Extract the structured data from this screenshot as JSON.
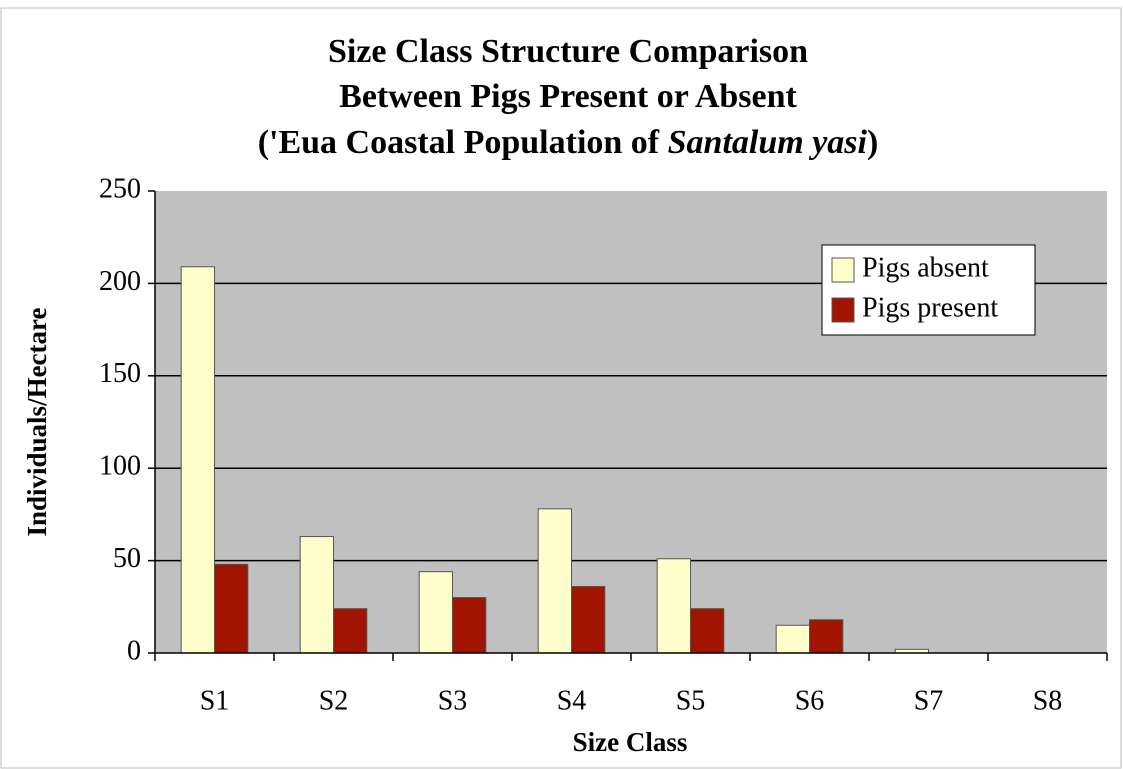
{
  "chart_data": {
    "type": "bar",
    "title": [
      "Size Class Structure Comparison",
      "Between Pigs Present or Absent",
      "('Eua Coastal Population of ",
      "Santalum yasi",
      ")"
    ],
    "x_label": "Size Class",
    "y_label": "Individuals/Hectare",
    "categories": [
      "S1",
      "S2",
      "S3",
      "S4",
      "S5",
      "S6",
      "S7",
      "S8"
    ],
    "series": [
      {
        "name": "Pigs absent",
        "color": "#ffffcc",
        "values": [
          209,
          63,
          44,
          78,
          51,
          15,
          2,
          0
        ]
      },
      {
        "name": "Pigs present",
        "color": "#a01400",
        "values": [
          48,
          24,
          30,
          36,
          24,
          18,
          0,
          0
        ]
      }
    ],
    "ylim": [
      0,
      250
    ],
    "yticks": [
      0,
      50,
      100,
      150,
      200,
      250
    ],
    "grid": true,
    "legend": "upper right"
  }
}
